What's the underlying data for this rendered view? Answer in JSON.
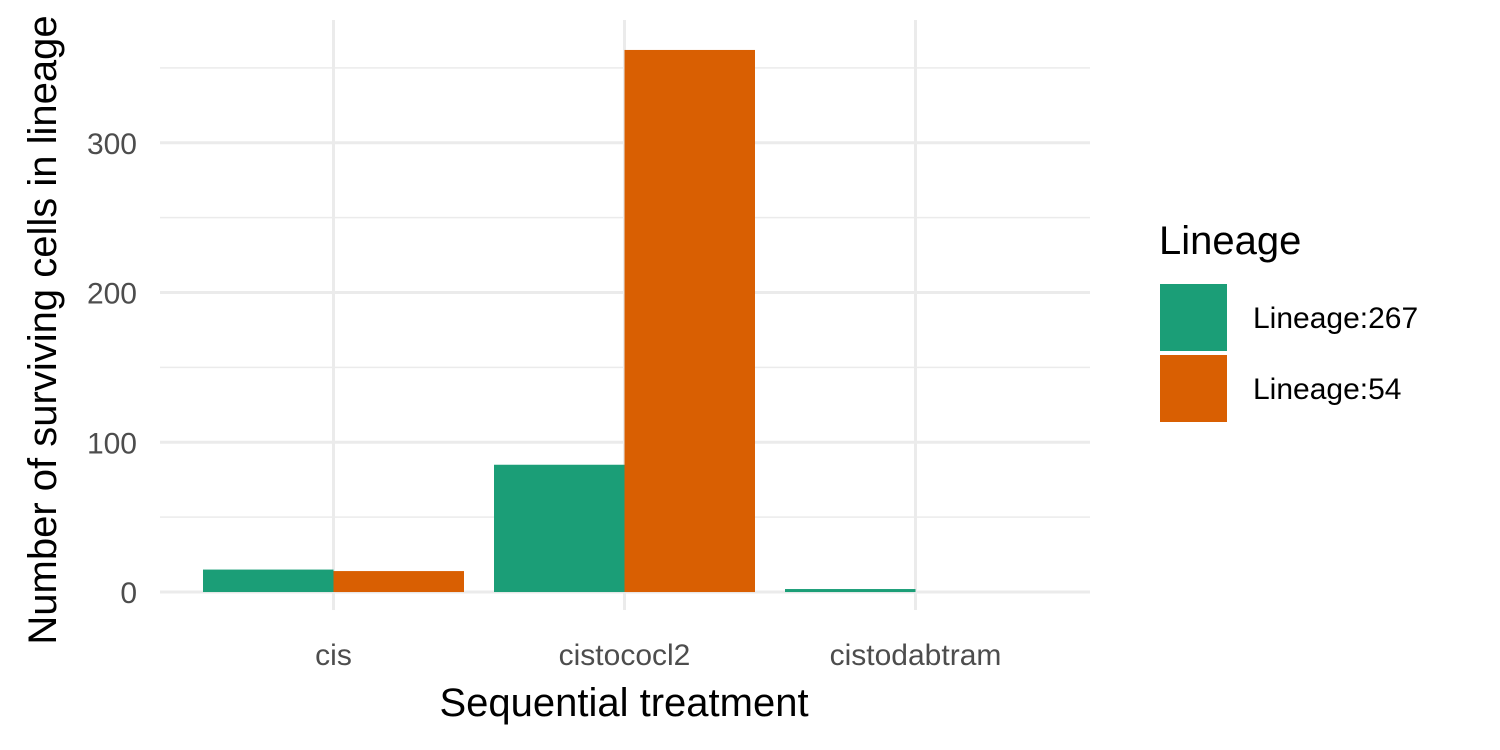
{
  "chart_data": {
    "type": "bar",
    "categories": [
      "cis",
      "cistococl2",
      "cistodabtram"
    ],
    "series": [
      {
        "name": "Lineage:267",
        "values": [
          15,
          85,
          2
        ],
        "color": "#1b9e77"
      },
      {
        "name": "Lineage:54",
        "values": [
          14,
          362,
          0
        ],
        "color": "#d95f02"
      }
    ],
    "xlabel": "Sequential treatment",
    "ylabel": "Number of surviving cells in lineage",
    "ylim": [
      -12,
      382
    ],
    "yticks": [
      0,
      100,
      200,
      300
    ],
    "ytick_labels": [
      "0",
      "100",
      "200",
      "300"
    ],
    "grid": true,
    "legend": {
      "title": "Lineage",
      "position": "right"
    }
  }
}
